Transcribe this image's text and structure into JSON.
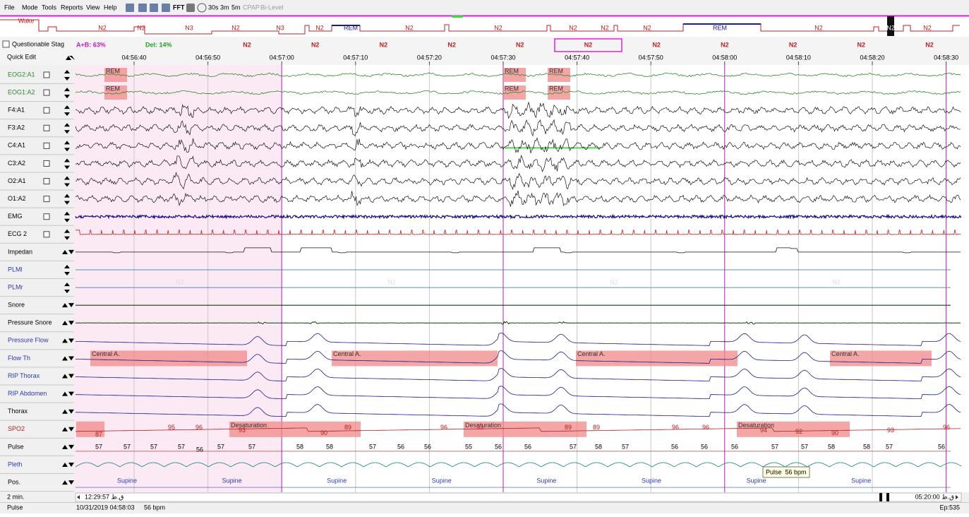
{
  "menu": [
    "File",
    "Mode",
    "Tools",
    "Reports",
    "View",
    "Help"
  ],
  "toolbar": [
    "FFT",
    "30s",
    "3m",
    "5m",
    "CPAP",
    "Bi-Level"
  ],
  "hypnogram": {
    "labels": [
      "Wake",
      "N2",
      "N2",
      "N3",
      "N2",
      "N3",
      "N2",
      "REM",
      "N2",
      "N2",
      "N2",
      "N2",
      "N2",
      "REM",
      "N2",
      "N2",
      "N2"
    ]
  },
  "status": {
    "questionable": "Questionable Stag",
    "ab": "A+B: 63%",
    "del": "Del: 14%",
    "epochs": [
      "N2",
      "N2",
      "N2",
      "N2",
      "N2",
      "N2",
      "N2",
      "N2",
      "N2",
      "N2",
      "N2"
    ]
  },
  "quick_edit": "Quick Edit",
  "time_ticks": [
    "04:56:40",
    "04:56:50",
    "04:57:00",
    "04:57:10",
    "04:57:20",
    "04:57:30",
    "04:57:40",
    "04:57:50",
    "04:58:00",
    "04:58:10",
    "04:58:20",
    "04:58:30"
  ],
  "channels": [
    "EOG2:A1",
    "EOG1:A2",
    "F4:A1",
    "F3:A2",
    "C4:A1",
    "C3:A2",
    "O2:A1",
    "O1:A2",
    "EMG",
    "ECG 2",
    "Impedan",
    "PLMl",
    "PLMr",
    "Snore",
    "Pressure Snore",
    "Pressure Flow",
    "Flow Th",
    "RIP Thorax",
    "RIP Abdomen",
    "Thorax",
    "SPO2",
    "Pulse",
    "Pleth",
    "Pos."
  ],
  "stage_watermark": "N2",
  "events": {
    "rem": "REM",
    "central": "Central A.",
    "desat": "Desaturation"
  },
  "spo2_values": [
    87,
    95,
    96,
    93,
    90,
    89,
    96,
    93,
    89,
    89,
    96,
    96,
    94,
    92,
    90,
    93,
    96
  ],
  "pulse_values": [
    57,
    57,
    57,
    57,
    56,
    57,
    57,
    58,
    58,
    57,
    56,
    56,
    55,
    56,
    56,
    57,
    58,
    57,
    56,
    56,
    56,
    57,
    57,
    58,
    58,
    57,
    56
  ],
  "positions": [
    "Supine",
    "Supine",
    "Supine",
    "Supine",
    "Supine",
    "Supine",
    "Supine",
    "Supine"
  ],
  "tooltip": "Pulse  56 bpm",
  "footer": {
    "zoom": "2 min.",
    "start": "12:29:57 ق.ظ",
    "end": "05:20:00 ق.ظ",
    "channel": "Pulse",
    "datetime": "10/31/2019 04:58:03",
    "reading": "56 bpm",
    "epoch": "Ep:535"
  }
}
